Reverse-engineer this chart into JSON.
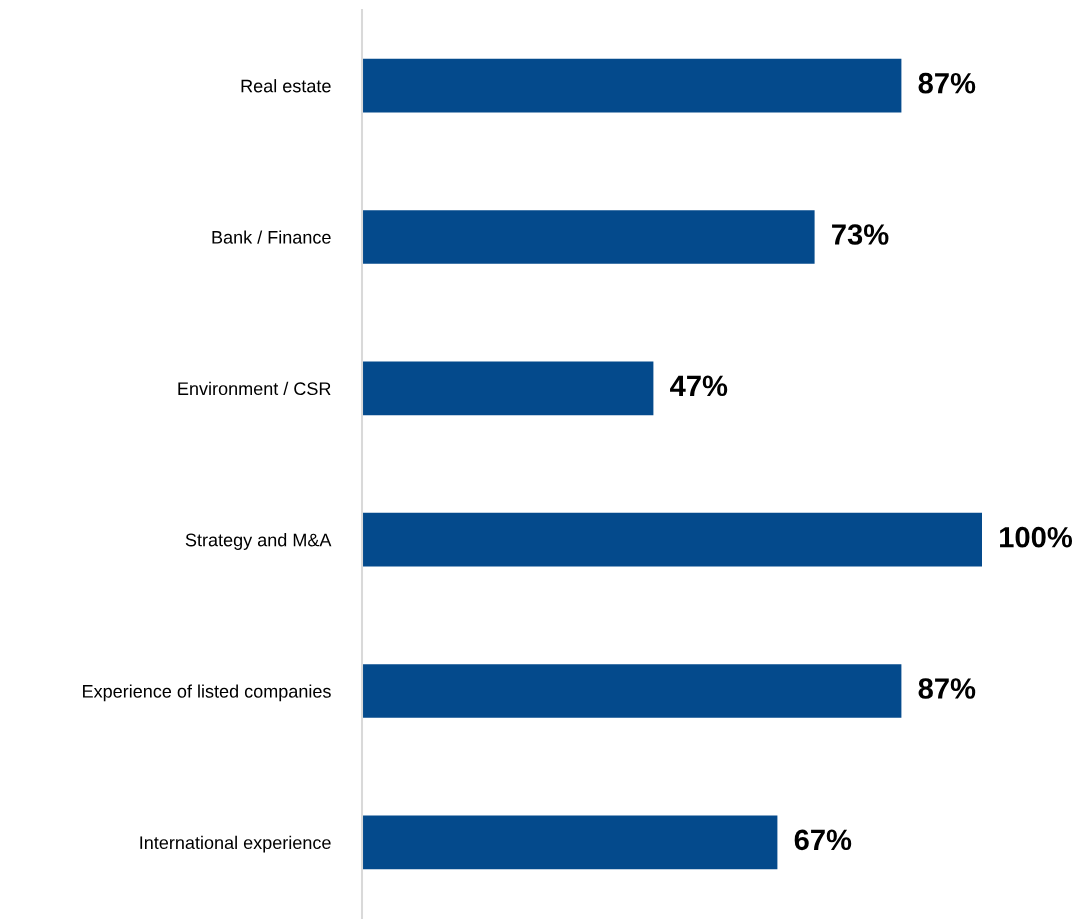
{
  "chart_data": {
    "type": "bar",
    "orientation": "horizontal",
    "categories": [
      "Real estate",
      "Bank / Finance",
      "Environment / CSR",
      "Strategy and M&A",
      "Experience of listed companies",
      "International experience"
    ],
    "values": [
      87,
      73,
      47,
      100,
      87,
      67
    ],
    "value_labels": [
      "87%",
      "73%",
      "47%",
      "100%",
      "87%",
      "67%"
    ],
    "color": "#044a8c",
    "grid": false,
    "legend": false,
    "tick_labels": "y"
  }
}
